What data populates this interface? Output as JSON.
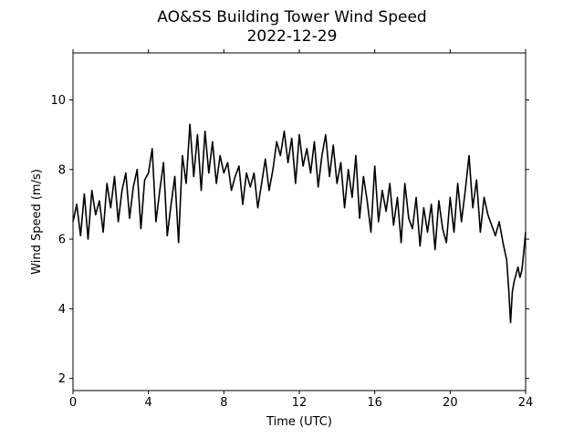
{
  "chart_data": {
    "type": "line",
    "title": "AO&SS Building Tower Wind Speed",
    "subtitle": "2022-12-29",
    "xlabel": "Time (UTC)",
    "ylabel": "Wind Speed (m/s)",
    "xlim": [
      0,
      24
    ],
    "ylim": [
      1.65,
      11.35
    ],
    "xticks": [
      0,
      4,
      8,
      12,
      16,
      20,
      24
    ],
    "yticks": [
      2,
      4,
      6,
      8,
      10
    ],
    "grid": false,
    "line_color": "#000000",
    "series": [
      {
        "x": [
          0.0,
          0.2,
          0.4,
          0.6,
          0.8,
          1.0,
          1.2,
          1.4,
          1.6,
          1.8,
          2.0,
          2.2,
          2.4,
          2.6,
          2.8,
          3.0,
          3.2,
          3.4,
          3.6,
          3.8,
          4.0,
          4.2,
          4.4,
          4.6,
          4.8,
          5.0,
          5.2,
          5.4,
          5.6,
          5.8,
          6.0,
          6.2,
          6.4,
          6.6,
          6.8,
          7.0,
          7.2,
          7.4,
          7.6,
          7.8,
          8.0,
          8.2,
          8.4,
          8.6,
          8.8,
          9.0,
          9.2,
          9.4,
          9.6,
          9.8,
          10.0,
          10.2,
          10.4,
          10.6,
          10.8,
          11.0,
          11.2,
          11.4,
          11.6,
          11.8,
          12.0,
          12.2,
          12.4,
          12.6,
          12.8,
          13.0,
          13.2,
          13.4,
          13.6,
          13.8,
          14.0,
          14.2,
          14.4,
          14.6,
          14.8,
          15.0,
          15.2,
          15.4,
          15.6,
          15.8,
          16.0,
          16.2,
          16.4,
          16.6,
          16.8,
          17.0,
          17.2,
          17.4,
          17.6,
          17.8,
          18.0,
          18.2,
          18.4,
          18.6,
          18.8,
          19.0,
          19.2,
          19.4,
          19.6,
          19.8,
          20.0,
          20.2,
          20.4,
          20.6,
          20.8,
          21.0,
          21.2,
          21.4,
          21.6,
          21.8,
          22.0,
          22.2,
          22.4,
          22.6,
          22.8,
          23.0,
          23.1,
          23.2,
          23.3,
          23.4,
          23.5,
          23.6,
          23.7,
          23.8,
          23.9,
          24.0
        ],
        "values": [
          6.5,
          7.0,
          6.1,
          7.3,
          6.0,
          7.4,
          6.7,
          7.1,
          6.2,
          7.6,
          6.9,
          7.8,
          6.5,
          7.4,
          7.9,
          6.6,
          7.5,
          8.0,
          6.3,
          7.7,
          7.9,
          8.6,
          6.5,
          7.4,
          8.2,
          6.1,
          7.0,
          7.8,
          5.9,
          8.4,
          7.6,
          9.3,
          7.8,
          9.0,
          7.4,
          9.1,
          7.9,
          8.8,
          7.6,
          8.4,
          7.9,
          8.2,
          7.4,
          7.8,
          8.1,
          7.0,
          7.9,
          7.5,
          7.9,
          6.9,
          7.6,
          8.3,
          7.4,
          8.0,
          8.8,
          8.4,
          9.1,
          8.2,
          8.9,
          7.6,
          9.0,
          8.1,
          8.6,
          7.9,
          8.8,
          7.5,
          8.4,
          9.0,
          7.8,
          8.7,
          7.6,
          8.2,
          6.9,
          8.0,
          7.2,
          8.4,
          6.6,
          7.8,
          7.1,
          6.2,
          8.1,
          6.5,
          7.4,
          6.8,
          7.6,
          6.4,
          7.2,
          5.9,
          7.6,
          6.6,
          6.3,
          7.2,
          5.8,
          6.9,
          6.2,
          7.0,
          5.7,
          7.1,
          6.3,
          5.9,
          7.2,
          6.2,
          7.6,
          6.5,
          7.4,
          8.4,
          6.9,
          7.7,
          6.2,
          7.2,
          6.7,
          6.4,
          6.1,
          6.5,
          5.9,
          5.4,
          4.6,
          3.6,
          4.5,
          4.8,
          5.0,
          5.2,
          4.9,
          5.1,
          5.6,
          6.2
        ]
      }
    ]
  }
}
